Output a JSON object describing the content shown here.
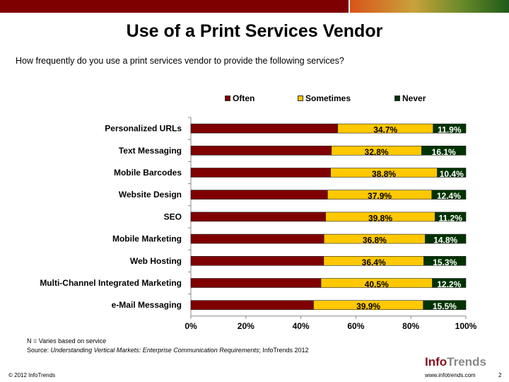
{
  "header": {
    "title": "Use of a Print Services Vendor",
    "question": "How frequently do you use a print services vendor to provide the following services?"
  },
  "chart_data": {
    "type": "bar",
    "stacked": true,
    "orientation": "horizontal",
    "title": "Use of a Print Services Vendor",
    "categories": [
      "Personalized URLs",
      "Text Messaging",
      "Mobile Barcodes",
      "Website Design",
      "SEO",
      "Mobile Marketing",
      "Web Hosting",
      "Multi-Channel Integrated Marketing",
      "e-Mail Messaging"
    ],
    "series": [
      {
        "name": "Often",
        "color": "#7f0000",
        "values": [
          53.4,
          51.1,
          50.8,
          49.7,
          49.0,
          48.4,
          48.3,
          47.3,
          44.6
        ],
        "labels": [
          "",
          "",
          "",
          "",
          "",
          "",
          "",
          "",
          ""
        ]
      },
      {
        "name": "Sometimes",
        "color": "#ffc800",
        "values": [
          34.7,
          32.8,
          38.8,
          37.9,
          39.8,
          36.8,
          36.4,
          40.5,
          39.9
        ],
        "labels": [
          "34.7%",
          "32.8%",
          "38.8%",
          "37.9%",
          "39.8%",
          "36.8%",
          "36.4%",
          "40.5%",
          "39.9%"
        ]
      },
      {
        "name": "Never",
        "color": "#003300",
        "values": [
          11.9,
          16.1,
          10.4,
          12.4,
          11.2,
          14.8,
          15.3,
          12.2,
          15.5
        ],
        "labels": [
          "11.9%",
          "16.1%",
          "10.4%",
          "12.4%",
          "11.2%",
          "14.8%",
          "15.3%",
          "12.2%",
          "15.5%"
        ]
      }
    ],
    "xlim": [
      0,
      100
    ],
    "xticks": [
      "0%",
      "20%",
      "40%",
      "60%",
      "80%",
      "100%"
    ],
    "legend": "top"
  },
  "footer": {
    "note": "N = Varies based on service",
    "source_prefix": "Source: ",
    "source_title": "Understanding Vertical Markets: Enterprise Communication Requirements",
    "source_suffix": "; InfoTrends 2012",
    "copyright": "© 2012 InfoTrends",
    "url": "www.infotrends.com",
    "page": "2",
    "logo": "InfoTrends"
  }
}
